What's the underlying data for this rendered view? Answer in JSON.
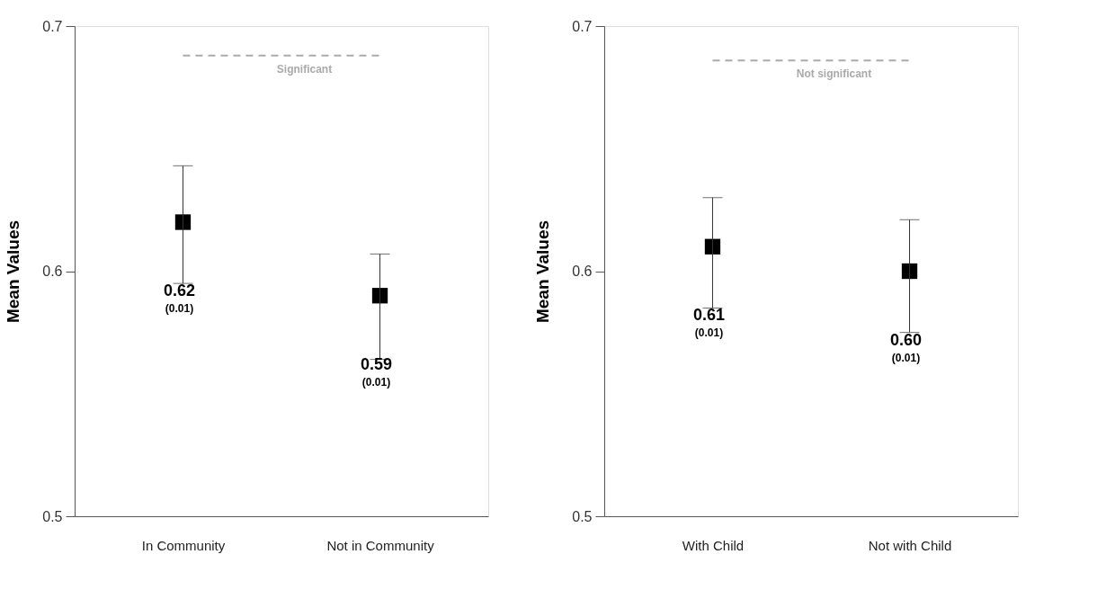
{
  "chart_data": [
    {
      "type": "scatter",
      "ylabel": "Mean Values",
      "categories": [
        "In Community",
        "Not in Community"
      ],
      "values": [
        0.62,
        0.59
      ],
      "errors": [
        [
          0.595,
          0.643
        ],
        [
          0.564,
          0.607
        ]
      ],
      "value_labels": [
        "0.62",
        "0.59"
      ],
      "color": "#000000",
      "marker": "square",
      "ylim": [
        0.5,
        0.7
      ],
      "yticks": [
        0.5,
        0.6,
        0.7
      ],
      "grid": false,
      "legend": false,
      "ref_lines": [
        {
          "axis": "y",
          "value": 0.688,
          "label": "Significant",
          "color": "#aaaaaa",
          "line_style": "dashed"
        }
      ],
      "annotations": [
        "(0.01)",
        "(0.01)"
      ]
    },
    {
      "type": "scatter",
      "ylabel": "Mean Values",
      "categories": [
        "With Child",
        "Not with Child"
      ],
      "values": [
        0.61,
        0.6
      ],
      "errors": [
        [
          0.585,
          0.63
        ],
        [
          0.575,
          0.621
        ]
      ],
      "value_labels": [
        "0.61",
        "0.60"
      ],
      "color": "#000000",
      "marker": "square",
      "ylim": [
        0.5,
        0.7
      ],
      "yticks": [
        0.5,
        0.6,
        0.7
      ],
      "grid": false,
      "legend": false,
      "ref_lines": [
        {
          "axis": "y",
          "value": 0.686,
          "label": "Not significant",
          "color": "#aaaaaa",
          "line_style": "dashed"
        }
      ],
      "annotations": [
        "(0.01)",
        "(0.01)"
      ]
    }
  ]
}
